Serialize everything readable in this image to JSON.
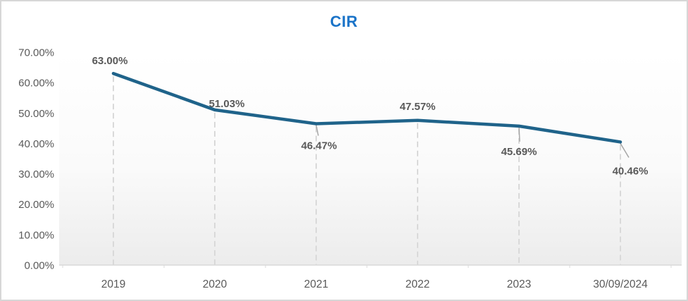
{
  "chart_data": {
    "type": "line",
    "title": "CIR",
    "categories": [
      "2019",
      "2020",
      "2021",
      "2022",
      "2023",
      "30/09/2024"
    ],
    "values": [
      63.0,
      51.03,
      46.47,
      47.57,
      45.69,
      40.46
    ],
    "point_labels": [
      "63.00%",
      "51.03%",
      "46.47%",
      "47.57%",
      "45.69%",
      "40.46%"
    ],
    "xlabel": "",
    "ylabel": "",
    "ylim": [
      0,
      70
    ],
    "ytick_step": 10,
    "ytick_labels": [
      "0.00%",
      "10.00%",
      "20.00%",
      "30.00%",
      "40.00%",
      "50.00%",
      "60.00%",
      "70.00%"
    ],
    "grid": "vertical-dashed",
    "legend": "none",
    "colors": {
      "series_line": "#1F638A",
      "title": "#1A73C8",
      "text": "#595959",
      "gridline": "#D9D9D9",
      "axis_line": "#D9D9D9",
      "leader_line": "#A6A6A6",
      "plot_gradient_top": "#FFFFFF",
      "plot_gradient_bottom": "#ECECEC",
      "card_border": "#D7D7D7"
    }
  }
}
